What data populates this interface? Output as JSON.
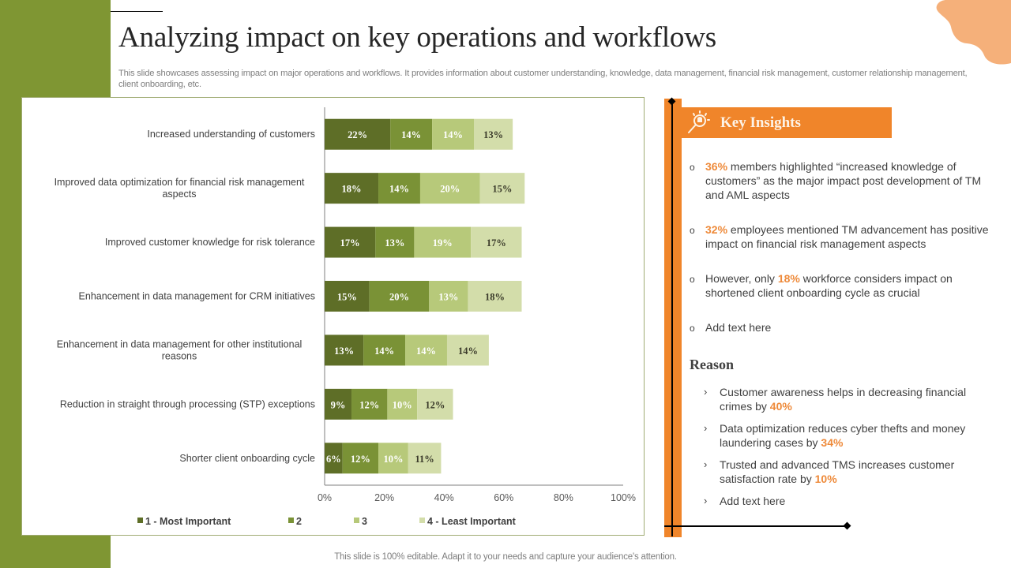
{
  "slide": {
    "title": "Analyzing impact on key operations and workflows",
    "subtitle": "This slide showcases assessing impact on major operations and workflows. It provides information about customer understanding, knowledge, data management, financial risk management, customer relationship management, client onboarding, etc.",
    "footer": "This slide is 100% editable. Adapt it to your needs and capture your audience's attention.",
    "colors": {
      "side_bar": "#7f9633",
      "accent_orange": "#f0852a",
      "blob": "#f5b07a",
      "highlight": "#ee8a3a"
    }
  },
  "chart_data": {
    "type": "bar",
    "orientation": "horizontal",
    "stacked": true,
    "title": "",
    "xlabel": "",
    "ylabel": "",
    "xlim": [
      0,
      100
    ],
    "x_ticks": [
      "0%",
      "20%",
      "40%",
      "60%",
      "80%",
      "100%"
    ],
    "grid": false,
    "legend_position": "bottom",
    "categories": [
      "Increased understanding  of customers",
      "Improved data optimization for financial risk management aspects",
      "Improved customer knowledge for risk tolerance",
      "Enhancement in data management for CRM initiatives",
      "Enhancement in data management for other institutional reasons",
      "Reduction in straight through processing (STP) exceptions",
      "Shorter client onboarding cycle"
    ],
    "category_lines": [
      [
        "Increased understanding  of customers"
      ],
      [
        "Improved data optimization for financial risk management",
        "aspects"
      ],
      [
        "Improved customer knowledge for risk tolerance"
      ],
      [
        "Enhancement in data management for CRM initiatives"
      ],
      [
        "Enhancement in data management for other institutional",
        "reasons"
      ],
      [
        "Reduction in straight through processing (STP) exceptions"
      ],
      [
        "Shorter client onboarding cycle"
      ]
    ],
    "series": [
      {
        "name": "1 - Most Important",
        "color": "#5e6e27",
        "label_color": "#ffffff",
        "values": [
          22,
          18,
          17,
          15,
          13,
          9,
          6
        ]
      },
      {
        "name": "2",
        "color": "#7a9236",
        "label_color": "#ffffff",
        "values": [
          14,
          14,
          13,
          20,
          14,
          12,
          12
        ]
      },
      {
        "name": "3",
        "color": "#b7c97a",
        "label_color": "#ffffff",
        "values": [
          14,
          20,
          19,
          13,
          14,
          10,
          10
        ]
      },
      {
        "name": "4 - Least Important",
        "color": "#d3ddaa",
        "label_color": "#3a3a2a",
        "values": [
          13,
          15,
          17,
          18,
          14,
          12,
          11
        ]
      }
    ],
    "value_suffix": "%"
  },
  "key_insights": {
    "title": "Key Insights",
    "icon": "lightbulb-magnifier-icon",
    "items": [
      {
        "highlight": "36%",
        "pre": "",
        "post": " members highlighted “increased knowledge of customers” as the major impact post development of TM and AML aspects"
      },
      {
        "highlight": "32%",
        "pre": "",
        "post": " employees mentioned TM advancement has positive impact on financial risk management aspects"
      },
      {
        "highlight": "18%",
        "pre": "However, only ",
        "post": " workforce considers impact on shortened client onboarding  cycle as crucial"
      },
      {
        "highlight": "",
        "pre": "Add text here",
        "post": ""
      }
    ]
  },
  "reason": {
    "title": "Reason",
    "items": [
      {
        "text": "Customer awareness helps in decreasing financial crimes by ",
        "highlight": "40%"
      },
      {
        "text": "Data optimization reduces cyber thefts and money laundering  cases by ",
        "highlight": "34%"
      },
      {
        "text": "Trusted and advanced TMS increases customer satisfaction rate by ",
        "highlight": "10%"
      },
      {
        "text": "Add text here",
        "highlight": ""
      }
    ]
  }
}
